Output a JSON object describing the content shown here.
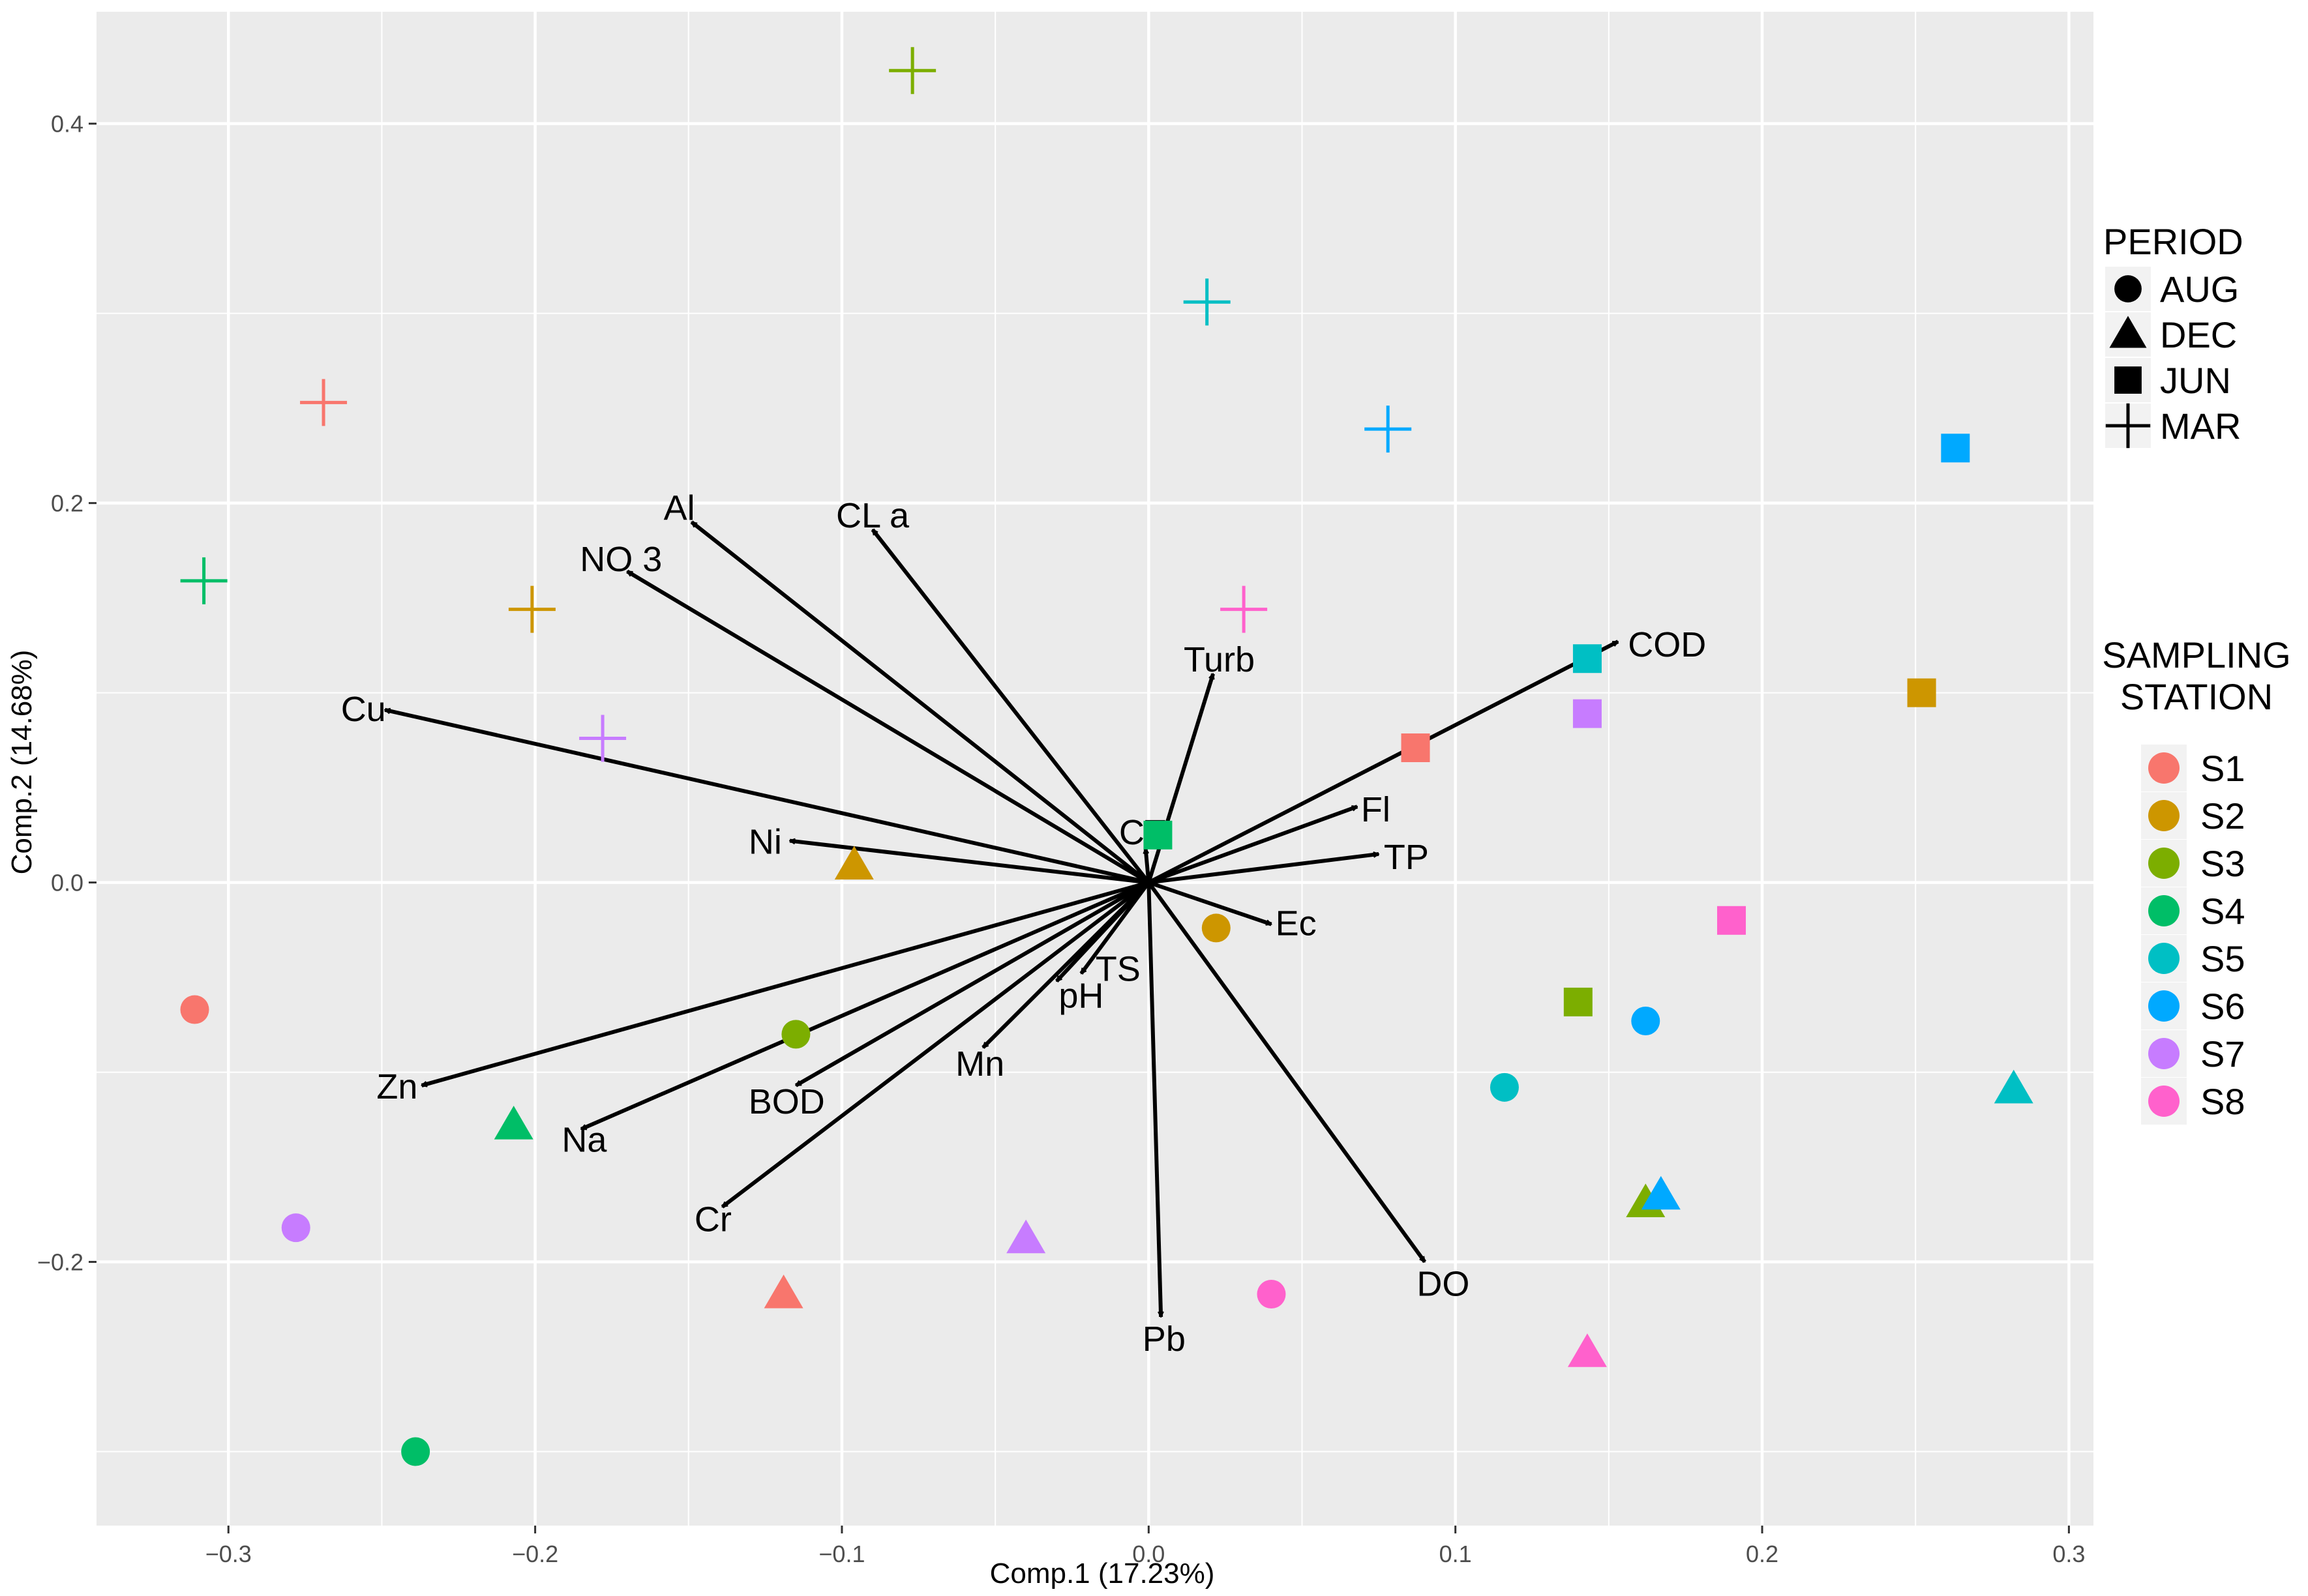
{
  "chart_data": {
    "type": "scatter",
    "subtype": "pca-biplot",
    "xlabel": "Comp.1 (17.23%)",
    "ylabel": "Comp.2 (14.68%)",
    "xlim": [
      -0.343,
      0.308
    ],
    "ylim": [
      -0.339,
      0.459
    ],
    "x_ticks": [
      -0.3,
      -0.2,
      -0.1,
      0.0,
      0.1,
      0.2,
      0.3
    ],
    "x_tick_labels": [
      "−0.3",
      "−0.2",
      "−0.1",
      "0.0",
      "0.1",
      "0.2",
      "0.3"
    ],
    "y_ticks": [
      -0.2,
      0.0,
      0.2,
      0.4
    ],
    "y_tick_labels": [
      "−0.2",
      "0.0",
      "0.2",
      "0.4"
    ],
    "grid": true,
    "colors": {
      "panel": "#ebebeb",
      "grid": "#ffffff",
      "S1": "#F8766D",
      "S2": "#CD9600",
      "S3": "#7CAE00",
      "S4": "#00BE67",
      "S5": "#00BFC4",
      "S6": "#00A9FF",
      "S7": "#C77CFF",
      "S8": "#FF61CC",
      "arrow": "#000000"
    },
    "legend_period": {
      "title": "PERIOD",
      "placement": "right",
      "entries": [
        {
          "label": "AUG",
          "shape": "circle"
        },
        {
          "label": "DEC",
          "shape": "triangle"
        },
        {
          "label": "JUN",
          "shape": "square"
        },
        {
          "label": "MAR",
          "shape": "plus"
        }
      ]
    },
    "legend_station": {
      "title_line1": "SAMPLING",
      "title_line2": "STATION",
      "placement": "right",
      "entries": [
        "S1",
        "S2",
        "S3",
        "S4",
        "S5",
        "S6",
        "S7",
        "S8"
      ]
    },
    "points": [
      {
        "station": "S1",
        "period": "AUG",
        "x": -0.311,
        "y": -0.067
      },
      {
        "station": "S2",
        "period": "AUG",
        "x": 0.022,
        "y": -0.024
      },
      {
        "station": "S3",
        "period": "AUG",
        "x": -0.115,
        "y": -0.08
      },
      {
        "station": "S4",
        "period": "AUG",
        "x": -0.239,
        "y": -0.3
      },
      {
        "station": "S5",
        "period": "AUG",
        "x": 0.116,
        "y": -0.108
      },
      {
        "station": "S6",
        "period": "AUG",
        "x": 0.162,
        "y": -0.073
      },
      {
        "station": "S7",
        "period": "AUG",
        "x": -0.278,
        "y": -0.182
      },
      {
        "station": "S8",
        "period": "AUG",
        "x": 0.04,
        "y": -0.217
      },
      {
        "station": "S1",
        "period": "DEC",
        "x": -0.119,
        "y": -0.217
      },
      {
        "station": "S2",
        "period": "DEC",
        "x": -0.096,
        "y": 0.009
      },
      {
        "station": "S3",
        "period": "DEC",
        "x": 0.162,
        "y": -0.169
      },
      {
        "station": "S4",
        "period": "DEC",
        "x": -0.207,
        "y": -0.128
      },
      {
        "station": "S5",
        "period": "DEC",
        "x": 0.282,
        "y": -0.109
      },
      {
        "station": "S6",
        "period": "DEC",
        "x": 0.167,
        "y": -0.165
      },
      {
        "station": "S7",
        "period": "DEC",
        "x": -0.04,
        "y": -0.188
      },
      {
        "station": "S8",
        "period": "DEC",
        "x": 0.143,
        "y": -0.248
      },
      {
        "station": "S1",
        "period": "JUN",
        "x": 0.087,
        "y": 0.071
      },
      {
        "station": "S2",
        "period": "JUN",
        "x": 0.252,
        "y": 0.1
      },
      {
        "station": "S3",
        "period": "JUN",
        "x": 0.14,
        "y": -0.063
      },
      {
        "station": "S4",
        "period": "JUN",
        "x": 0.003,
        "y": 0.025
      },
      {
        "station": "S5",
        "period": "JUN",
        "x": 0.143,
        "y": 0.118
      },
      {
        "station": "S6",
        "period": "JUN",
        "x": 0.263,
        "y": 0.229
      },
      {
        "station": "S7",
        "period": "JUN",
        "x": 0.143,
        "y": 0.089
      },
      {
        "station": "S8",
        "period": "JUN",
        "x": 0.19,
        "y": -0.02
      },
      {
        "station": "S1",
        "period": "MAR",
        "x": -0.269,
        "y": 0.253
      },
      {
        "station": "S2",
        "period": "MAR",
        "x": -0.201,
        "y": 0.144
      },
      {
        "station": "S3",
        "period": "MAR",
        "x": -0.077,
        "y": 0.428
      },
      {
        "station": "S4",
        "period": "MAR",
        "x": -0.308,
        "y": 0.159
      },
      {
        "station": "S5",
        "period": "MAR",
        "x": 0.019,
        "y": 0.306
      },
      {
        "station": "S6",
        "period": "MAR",
        "x": 0.078,
        "y": 0.239
      },
      {
        "station": "S7",
        "period": "MAR",
        "x": -0.178,
        "y": 0.076
      },
      {
        "station": "S8",
        "period": "MAR",
        "x": 0.031,
        "y": 0.144
      }
    ],
    "loadings": [
      {
        "label": "Al",
        "x": -0.149,
        "y": 0.19,
        "lx": -0.153,
        "ly": 0.198
      },
      {
        "label": "CL a",
        "x": -0.09,
        "y": 0.186,
        "lx": -0.09,
        "ly": 0.194
      },
      {
        "label": "NO 3",
        "x": -0.17,
        "y": 0.164,
        "lx": -0.172,
        "ly": 0.171
      },
      {
        "label": "Cu",
        "x": -0.249,
        "y": 0.091,
        "lx": -0.256,
        "ly": 0.092
      },
      {
        "label": "Turb",
        "x": 0.021,
        "y": 0.11,
        "lx": 0.023,
        "ly": 0.118
      },
      {
        "label": "COD",
        "x": 0.153,
        "y": 0.127,
        "lx": 0.169,
        "ly": 0.126
      },
      {
        "label": "Fl",
        "x": 0.068,
        "y": 0.04,
        "lx": 0.074,
        "ly": 0.039
      },
      {
        "label": "TP",
        "x": 0.075,
        "y": 0.015,
        "lx": 0.084,
        "ly": 0.014
      },
      {
        "label": "CT",
        "x": -0.001,
        "y": 0.018,
        "lx": -0.002,
        "ly": 0.027
      },
      {
        "label": "Ni",
        "x": -0.117,
        "y": 0.022,
        "lx": -0.125,
        "ly": 0.022
      },
      {
        "label": "Ec",
        "x": 0.04,
        "y": -0.022,
        "lx": 0.048,
        "ly": -0.021
      },
      {
        "label": "TS",
        "x": -0.022,
        "y": -0.048,
        "lx": -0.01,
        "ly": -0.045
      },
      {
        "label": "pH",
        "x": -0.03,
        "y": -0.052,
        "lx": -0.022,
        "ly": -0.059
      },
      {
        "label": "Mn",
        "x": -0.054,
        "y": -0.087,
        "lx": -0.055,
        "ly": -0.095
      },
      {
        "label": "BOD",
        "x": -0.115,
        "y": -0.107,
        "lx": -0.118,
        "ly": -0.115
      },
      {
        "label": "Zn",
        "x": -0.237,
        "y": -0.107,
        "lx": -0.245,
        "ly": -0.107
      },
      {
        "label": "Na",
        "x": -0.185,
        "y": -0.13,
        "lx": -0.184,
        "ly": -0.135
      },
      {
        "label": "Cr",
        "x": -0.139,
        "y": -0.171,
        "lx": -0.142,
        "ly": -0.177
      },
      {
        "label": "Pb",
        "x": 0.004,
        "y": -0.229,
        "lx": 0.005,
        "ly": -0.24
      },
      {
        "label": "DO",
        "x": 0.09,
        "y": -0.2,
        "lx": 0.096,
        "ly": -0.211
      }
    ]
  }
}
